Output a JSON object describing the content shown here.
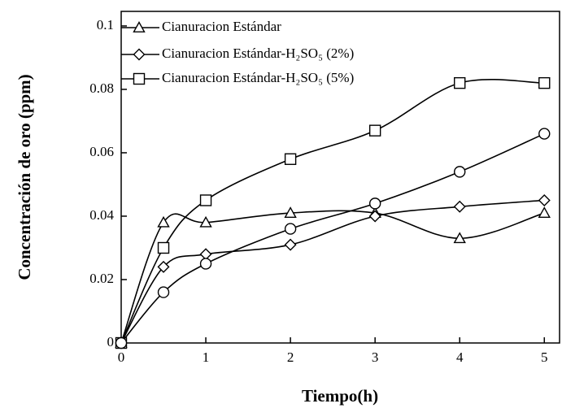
{
  "chart_data": {
    "type": "line",
    "x_label": "Tiempo(h)",
    "y_label": "Concentración de oro (ppm)",
    "xlim": [
      0,
      5.18
    ],
    "ylim": [
      0,
      0.1046
    ],
    "xticks": [
      0,
      1,
      2,
      3,
      4,
      5
    ],
    "yticks": [
      0,
      0.02,
      0.04,
      0.06,
      0.08,
      0.1
    ],
    "x": [
      0,
      0.5,
      1,
      2,
      3,
      4,
      5
    ],
    "legend": "upper left",
    "series": [
      {
        "name": "Cianuracion Estándar",
        "color": "#000000",
        "marker": "triangle",
        "values": [
          0,
          0.038,
          0.038,
          0.041,
          0.041,
          0.033,
          0.041
        ]
      },
      {
        "name": "Cianuracion Estándar-H₂SO₅ (2%)",
        "color": "#000000",
        "marker": "diamond",
        "values": [
          0,
          0.024,
          0.028,
          0.031,
          0.04,
          0.043,
          0.045
        ]
      },
      {
        "name": "Cianuracion Estándar-H₂SO₅ (5%)",
        "color": "#000000",
        "marker": "square",
        "values": [
          0,
          0.03,
          0.045,
          0.058,
          0.067,
          0.082,
          0.082
        ]
      },
      {
        "color": "#000000",
        "marker": "circle",
        "values": [
          0,
          0.016,
          0.025,
          0.036,
          0.044,
          0.054,
          0.066
        ]
      }
    ]
  }
}
